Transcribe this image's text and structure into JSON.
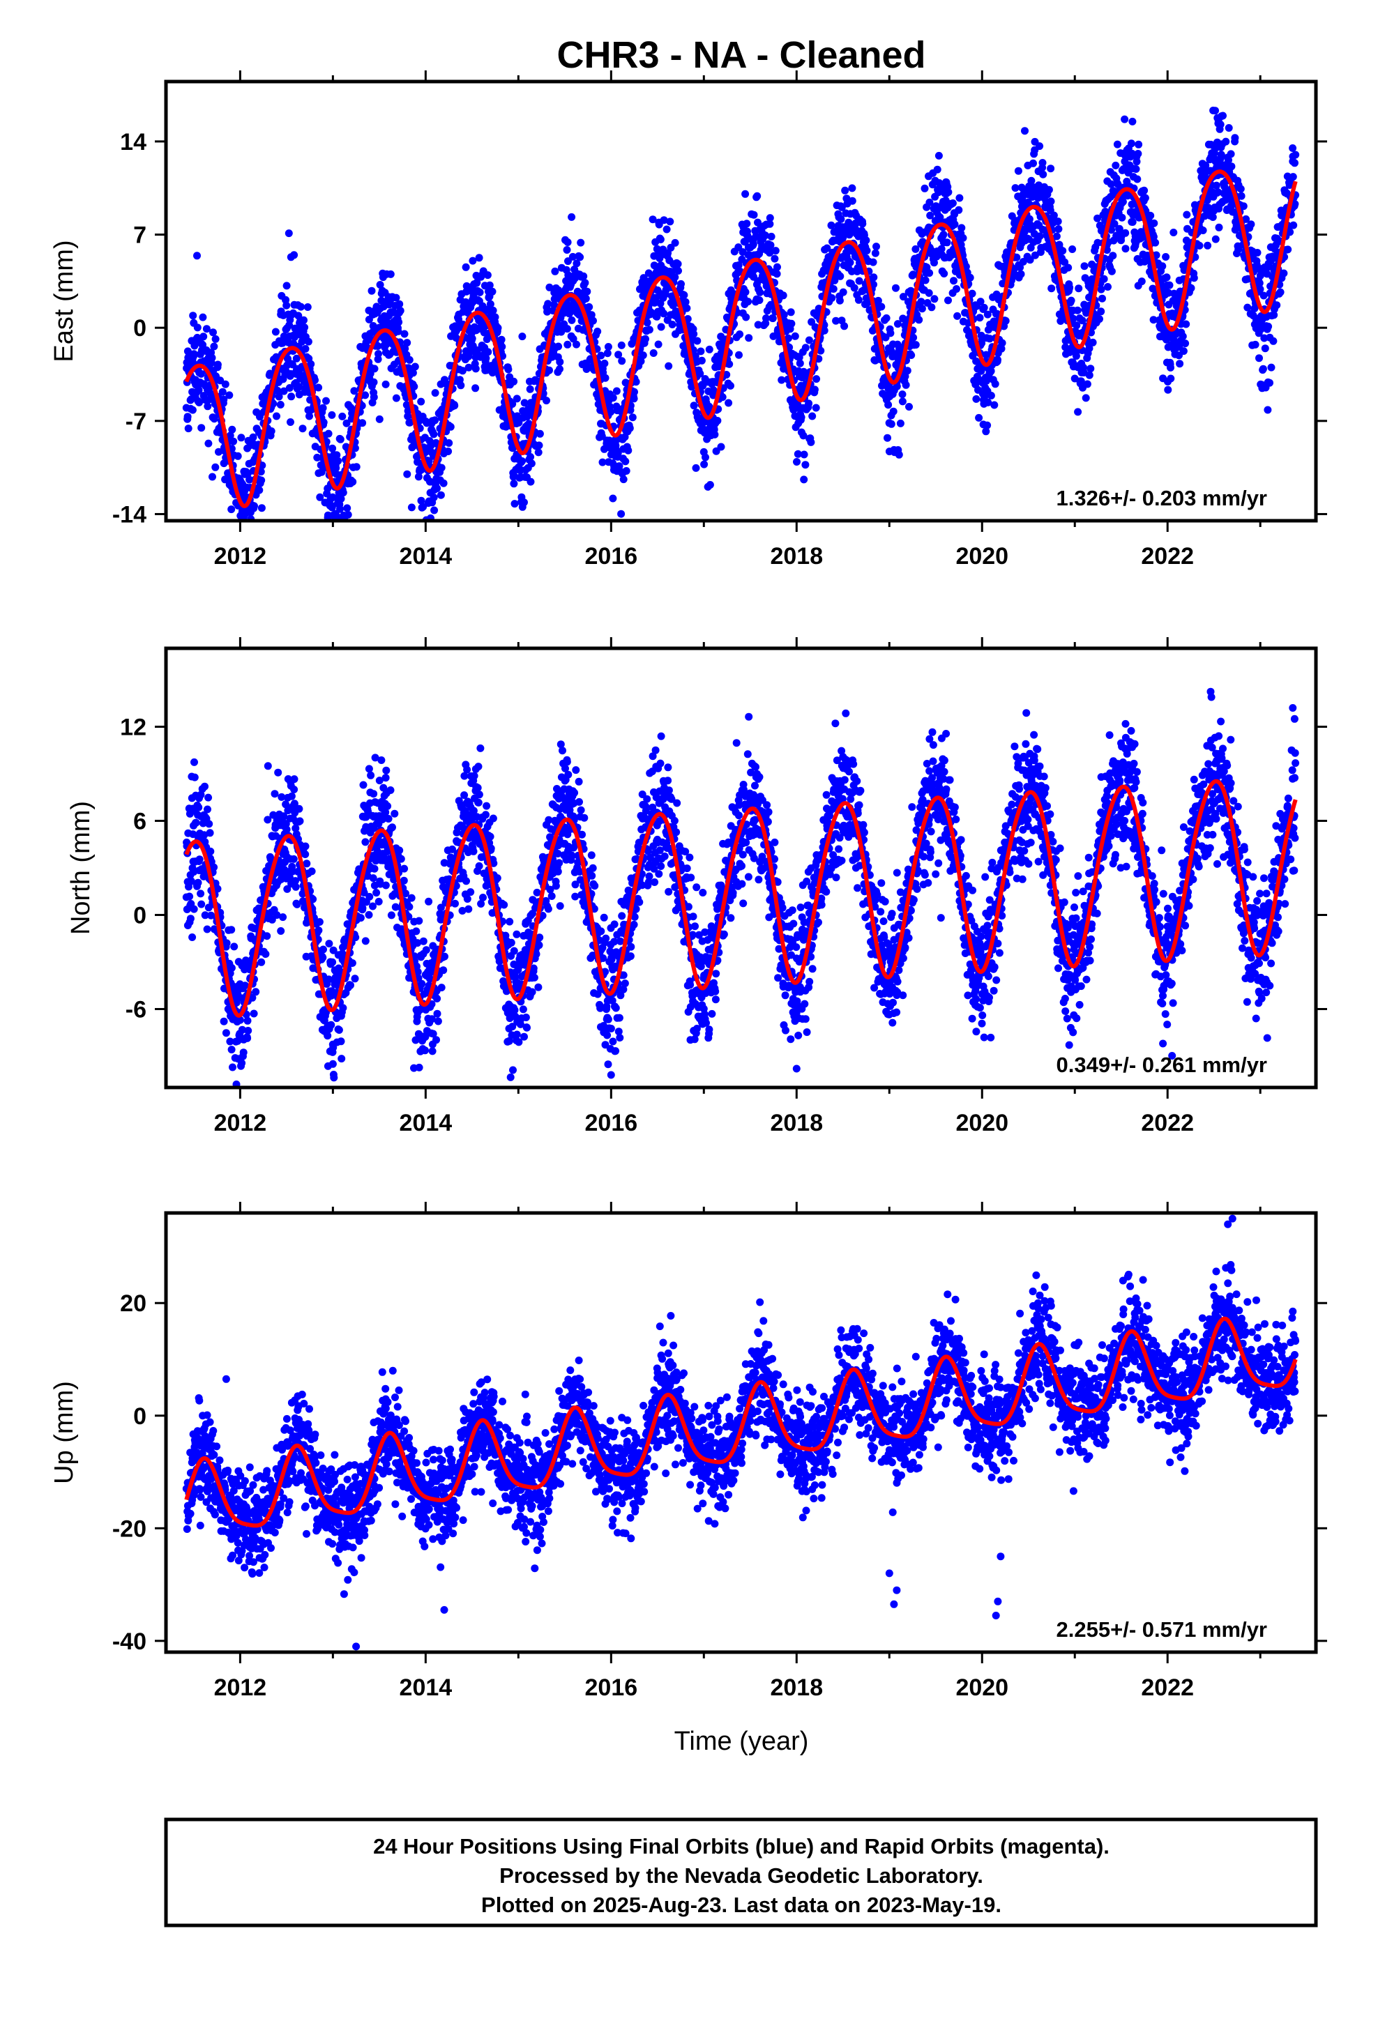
{
  "title": "CHR3  - NA - Cleaned",
  "xlabel": "Time (year)",
  "colors": {
    "data": "#0000ff",
    "fit": "#ff0000",
    "frame": "#000000"
  },
  "chart_data": [
    {
      "type": "scatter",
      "name": "east",
      "ylabel": "East (mm)",
      "rate": "1.326+/- 0.203 mm/yr",
      "xlim": [
        2011.2,
        2023.6
      ],
      "ylim": [
        -14.5,
        18.5
      ],
      "x_ticks": [
        2012,
        2014,
        2016,
        2018,
        2020,
        2022
      ],
      "x_tick_labels": [
        "2012",
        "2014",
        "2016",
        "2018",
        "2020",
        "2022"
      ],
      "y_ticks": [
        14,
        7,
        0,
        -7,
        -14
      ],
      "y_tick_labels": [
        "14",
        "7",
        "0",
        "-7",
        "-14"
      ],
      "model": {
        "start": 2011.42,
        "end": 2023.38,
        "ref": 2017.4,
        "intercept": 0.0,
        "trend": 1.326,
        "annual_amp": 5.6,
        "annual_peak": 0.55,
        "semi_amp": 0.7,
        "semi_phase": 0.3,
        "noise_sd": 1.8,
        "seed": 11
      },
      "outliers": [
        [
          2013.8,
          -11.0
        ],
        [
          2013.85,
          -13.5
        ],
        [
          2021.95,
          -3.8
        ],
        [
          2023.35,
          12.5
        ],
        [
          2023.38,
          13.0
        ],
        [
          2011.7,
          -11.2
        ],
        [
          2020.05,
          -4.7
        ]
      ]
    },
    {
      "type": "scatter",
      "name": "north",
      "ylabel": "North (mm)",
      "rate": "0.349+/- 0.261 mm/yr",
      "xlim": [
        2011.2,
        2023.6
      ],
      "ylim": [
        -11,
        17
      ],
      "x_ticks": [
        2012,
        2014,
        2016,
        2018,
        2020,
        2022
      ],
      "x_tick_labels": [
        "2012",
        "2014",
        "2016",
        "2018",
        "2020",
        "2022"
      ],
      "y_ticks": [
        12,
        6,
        0,
        -6
      ],
      "y_tick_labels": [
        "12",
        "6",
        "0",
        "-6"
      ],
      "model": {
        "start": 2011.42,
        "end": 2023.38,
        "ref": 2017.4,
        "intercept": 1.5,
        "trend": 0.349,
        "annual_amp": 5.6,
        "annual_peak": 0.5,
        "semi_amp": 0.5,
        "semi_phase": 0.2,
        "noise_sd": 1.7,
        "seed": 23
      },
      "outliers": [
        [
          2016.0,
          -10.2
        ],
        [
          2018.0,
          -9.8
        ],
        [
          2013.0,
          -9.5
        ],
        [
          2021.95,
          -8.2
        ],
        [
          2023.35,
          13.2
        ],
        [
          2023.37,
          12.5
        ],
        [
          2012.3,
          9.5
        ]
      ]
    },
    {
      "type": "scatter",
      "name": "up",
      "ylabel": "Up (mm)",
      "rate": "2.255+/- 0.571 mm/yr",
      "xlim": [
        2011.2,
        2023.6
      ],
      "ylim": [
        -42,
        36
      ],
      "x_ticks": [
        2012,
        2014,
        2016,
        2018,
        2020,
        2022
      ],
      "x_tick_labels": [
        "2012",
        "2014",
        "2016",
        "2018",
        "2020",
        "2022"
      ],
      "y_ticks": [
        20,
        0,
        -20,
        -40
      ],
      "y_tick_labels": [
        "20",
        "0",
        "-20",
        "-40"
      ],
      "model": {
        "start": 2011.42,
        "end": 2023.38,
        "ref": 2017.4,
        "intercept": -2.5,
        "trend": 2.255,
        "annual_amp": 6.5,
        "annual_peak": 0.62,
        "semi_amp": 1.5,
        "semi_phase": 0.1,
        "noise_sd": 3.8,
        "seed": 37
      },
      "outliers": [
        [
          2013.25,
          -41.0
        ],
        [
          2014.2,
          -34.5
        ],
        [
          2019.0,
          -28.0
        ],
        [
          2019.05,
          -33.5
        ],
        [
          2019.08,
          -31.0
        ],
        [
          2020.15,
          -35.5
        ],
        [
          2020.17,
          -33.0
        ],
        [
          2020.2,
          -25.0
        ],
        [
          2022.7,
          35.0
        ],
        [
          2022.65,
          34.0
        ],
        [
          2023.35,
          18.5
        ],
        [
          2011.85,
          6.5
        ]
      ]
    }
  ],
  "footer": {
    "line1": "24 Hour Positions Using Final Orbits (blue) and Rapid Orbits (magenta).",
    "line2": "Processed by the Nevada Geodetic Laboratory.",
    "line3": "Plotted on 2025-Aug-23. Last data on 2023-May-19."
  }
}
